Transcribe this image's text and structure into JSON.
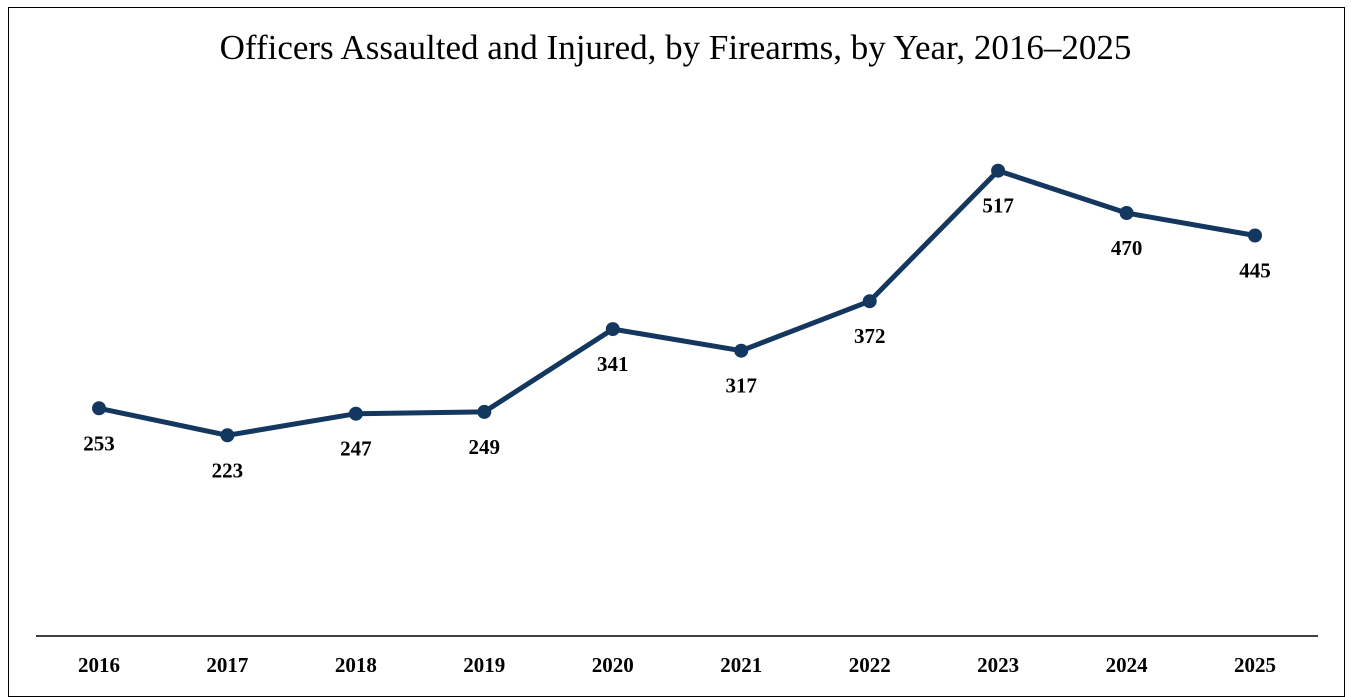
{
  "chart_data": {
    "type": "line",
    "title": "Officers Assaulted and Injured, by Firearms, by Year, 2016–2025",
    "xlabel": "",
    "ylabel": "",
    "categories": [
      "2016",
      "2017",
      "2018",
      "2019",
      "2020",
      "2021",
      "2022",
      "2023",
      "2024",
      "2025"
    ],
    "values": [
      253,
      223,
      247,
      249,
      341,
      317,
      372,
      517,
      470,
      445
    ],
    "ylim": [
      0,
      610
    ],
    "grid": false,
    "legend": "none",
    "data_labels": [
      "253",
      "223",
      "247",
      "249",
      "341",
      "317",
      "372",
      "517",
      "470",
      "445"
    ],
    "line_color": "#13375e",
    "marker_color": "#13375e"
  }
}
